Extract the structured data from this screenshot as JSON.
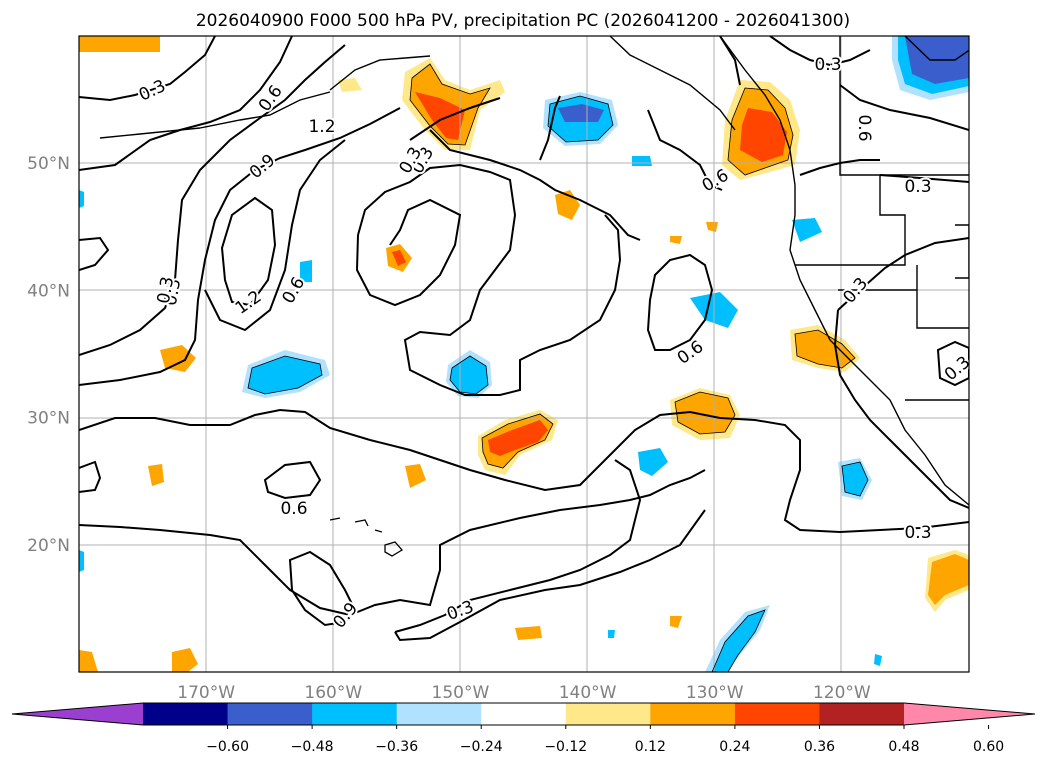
{
  "title": "2026040900 F000 500 hPa PV, precipitation PC (2026041200 - 2026041300)",
  "map": {
    "lon_range": [
      -180,
      -110
    ],
    "lat_range": [
      10,
      60
    ],
    "lon_ticks": [
      -170,
      -160,
      -150,
      -140,
      -130,
      -120
    ],
    "lon_tick_labels": [
      "170°W",
      "160°W",
      "150°W",
      "140°W",
      "130°W",
      "120°W"
    ],
    "lat_ticks": [
      20,
      30,
      40,
      50
    ],
    "lat_tick_labels": [
      "20°N",
      "30°N",
      "40°N",
      "50°N"
    ],
    "grid": true,
    "coastlines": true
  },
  "contour_labels": [
    "0.3",
    "0.6",
    "0.9",
    "1.2",
    "0.3",
    "0.6",
    "1.2",
    "0.3",
    "0.6",
    "0.3",
    "0.6",
    "0.3",
    "0.6",
    "0.3",
    "0.3",
    "0.6",
    "0.9",
    "0.3",
    "0.3",
    "0.3",
    "0.3"
  ],
  "colorbar": {
    "extend": "both",
    "ticks": [
      "−0.60",
      "−0.48",
      "−0.36",
      "−0.24",
      "−0.12",
      "0.12",
      "0.24",
      "0.36",
      "0.48",
      "0.60"
    ],
    "colors": [
      "#9b3fd1",
      "#00008b",
      "#3a5fcd",
      "#00bfff",
      "#b0e2ff",
      "#ffffff",
      "#ffe88a",
      "#ffa500",
      "#ff4500",
      "#b22222",
      "#ff88aa"
    ]
  },
  "colors": {
    "neg_light": "#b0e2ff",
    "neg_mid": "#00bfff",
    "neg_strong": "#3a5fcd",
    "pos_light": "#ffe88a",
    "pos_mid": "#ffa500",
    "pos_strong": "#ff4500"
  }
}
